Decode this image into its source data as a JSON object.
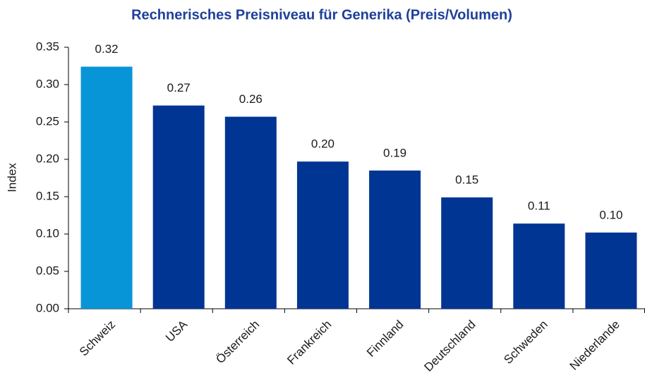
{
  "chart_data": {
    "type": "bar",
    "title": "Rechnerisches Preisniveau für Generika (Preis/Volumen)",
    "y_label": "Index",
    "categories": [
      "Schweiz",
      "USA",
      "Österreich",
      "Frankreich",
      "Finnland",
      "Deutschland",
      "Schweden",
      "Niederlande"
    ],
    "values": [
      0.324,
      0.272,
      0.257,
      0.197,
      0.185,
      0.149,
      0.114,
      0.102
    ],
    "value_labels": [
      "0.32",
      "0.27",
      "0.26",
      "0.20",
      "0.19",
      "0.15",
      "0.11",
      "0.10"
    ],
    "colors": [
      "#0895d8",
      "#003593",
      "#003593",
      "#003593",
      "#003593",
      "#003593",
      "#003593",
      "#003593"
    ],
    "ylim": [
      0,
      0.35
    ],
    "yticks": [
      {
        "value": 0,
        "label": "0.00"
      },
      {
        "value": 0.05,
        "label": "0.05"
      },
      {
        "value": 0.1,
        "label": "0.10"
      },
      {
        "value": 0.15,
        "label": "0.15"
      },
      {
        "value": 0.2,
        "label": "0.20"
      },
      {
        "value": 0.25,
        "label": "0.25"
      },
      {
        "value": 0.3,
        "label": "0.30"
      },
      {
        "value": 0.35,
        "label": "0.35"
      }
    ]
  }
}
